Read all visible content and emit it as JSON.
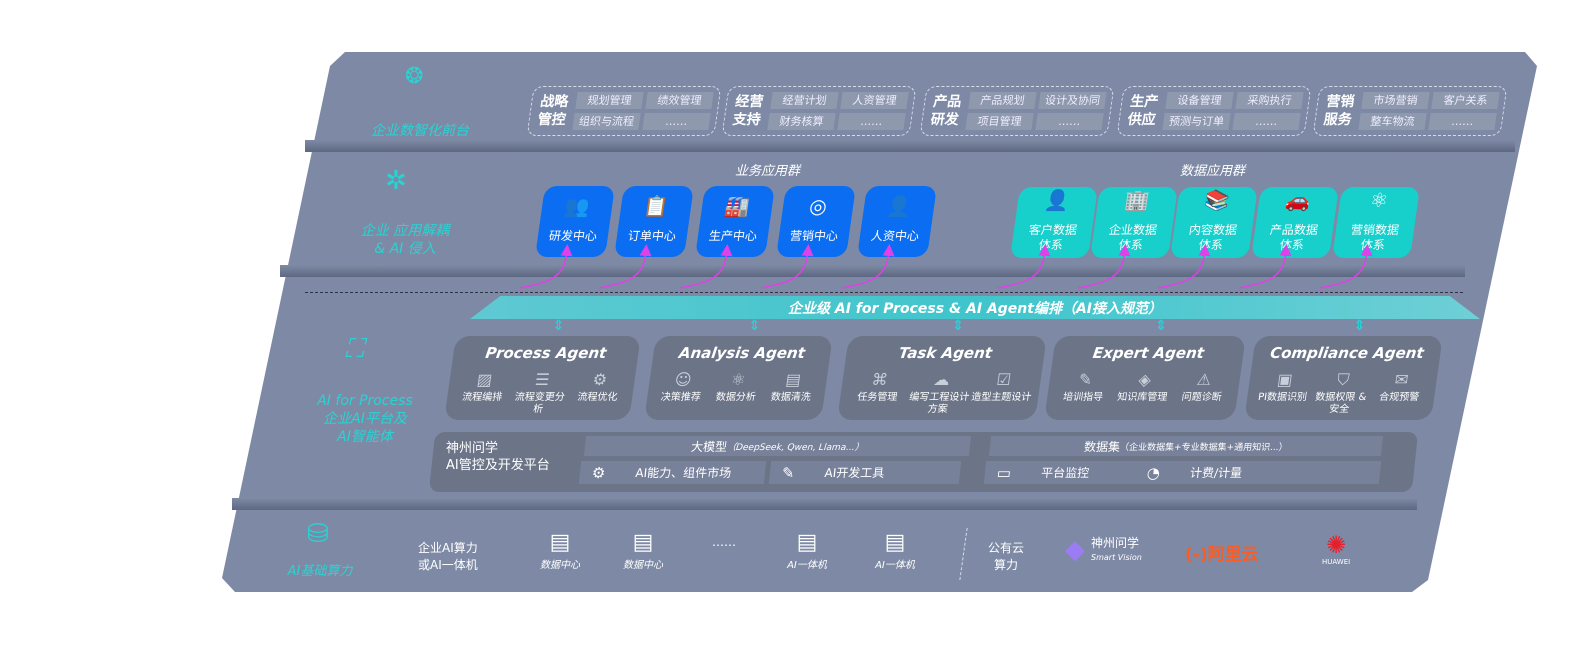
{
  "front": {
    "label": "企业数智化前台",
    "icon": "brain-icon",
    "groups": [
      {
        "title": "战略管控",
        "items": [
          "规划管理",
          "绩效管理",
          "组织与流程",
          "……"
        ]
      },
      {
        "title": "经营支持",
        "items": [
          "经营计划",
          "人资管理",
          "财务核算",
          "……"
        ]
      },
      {
        "title": "产品研发",
        "items": [
          "产品规划",
          "设计及协同",
          "项目管理",
          "……"
        ]
      },
      {
        "title": "生产供应",
        "items": [
          "设备管理",
          "采购执行",
          "预测与订单",
          "……"
        ]
      },
      {
        "title": "营销服务",
        "items": [
          "市场营销",
          "客户关系",
          "整车物流",
          "……"
        ]
      }
    ]
  },
  "apps": {
    "label1": "企业 应用解耦",
    "label2": "& AI 侵入",
    "icon": "molecule-icon",
    "business_title": "业务应用群",
    "business": [
      {
        "name": "研发中心",
        "icon": "team-icon",
        "glyph": "👥"
      },
      {
        "name": "订单中心",
        "icon": "clipboard-icon",
        "glyph": "📋"
      },
      {
        "name": "生产中心",
        "icon": "factory-icon",
        "glyph": "🏭"
      },
      {
        "name": "营销中心",
        "icon": "target-icon",
        "glyph": "◎"
      },
      {
        "name": "人资中心",
        "icon": "person-icon",
        "glyph": "👤"
      }
    ],
    "data_title": "数据应用群",
    "data": [
      {
        "l1": "客户数据",
        "l2": "体系",
        "icon": "user-icon",
        "glyph": "👤"
      },
      {
        "l1": "企业数据",
        "l2": "体系",
        "icon": "building-icon",
        "glyph": "🏢"
      },
      {
        "l1": "内容数据",
        "l2": "体系",
        "icon": "books-icon",
        "glyph": "📚"
      },
      {
        "l1": "产品数据",
        "l2": "体系",
        "icon": "car-icon",
        "glyph": "🚗"
      },
      {
        "l1": "营销数据",
        "l2": "体系",
        "icon": "atom-icon",
        "glyph": "⚛"
      }
    ]
  },
  "banner": "企业级 AI for Process & AI Agent编排（AI接入规范）",
  "ai": {
    "label1": "AI for Process",
    "label2": "企业AI平台及",
    "label3": "AI智能体",
    "icon": "face-scan-icon",
    "agents": [
      {
        "name": "Process Agent",
        "features": [
          [
            "流程编排",
            "chart-icon",
            "▨"
          ],
          [
            "流程变更分析",
            "list-icon",
            "☰"
          ],
          [
            "流程优化",
            "tools-icon",
            "⚙"
          ]
        ]
      },
      {
        "name": "Analysis Agent",
        "features": [
          [
            "决策推荐",
            "head-icon",
            "☺"
          ],
          [
            "数据分析",
            "atom-icon",
            "⚛"
          ],
          [
            "数据清洗",
            "doc-icon",
            "▤"
          ]
        ]
      },
      {
        "name": "Task Agent",
        "features": [
          [
            "任务管理",
            "network-icon",
            "⌘"
          ],
          [
            "编写工程设计方案",
            "cloud-icon",
            "☁"
          ],
          [
            "造型主题设计",
            "checklist-icon",
            "☑"
          ]
        ]
      },
      {
        "name": "Expert Agent",
        "features": [
          [
            "培训指导",
            "pen-icon",
            "✎"
          ],
          [
            "知识库管理",
            "layers-icon",
            "◈"
          ],
          [
            "问题诊断",
            "diagnosis-icon",
            "⚠"
          ]
        ]
      },
      {
        "name": "Compliance Agent",
        "features": [
          [
            "PI数据识别",
            "id-icon",
            "▣"
          ],
          [
            "数据权限 & 安全",
            "shield-icon",
            "⛉"
          ],
          [
            "合规预警",
            "alert-icon",
            "✉"
          ]
        ]
      }
    ],
    "platform": {
      "l1": "神州问学",
      "l2": "AI管控及开发平台",
      "model_title": "大模型",
      "model_note": "（DeepSeek, Qwen, Llama...）",
      "dataset_title": "数据集",
      "dataset_note": "（企业数据集+专业数据集+通用知识...）",
      "tools": [
        {
          "name": "AI能力、组件市场",
          "icon": "market-icon",
          "glyph": "⚙"
        },
        {
          "name": "AI开发工具",
          "icon": "dev-tool-icon",
          "glyph": "✎"
        },
        {
          "name": "平台监控",
          "icon": "monitor-icon",
          "glyph": "▭"
        },
        {
          "name": "计费/计量",
          "icon": "gauge-icon",
          "glyph": "◔"
        }
      ]
    }
  },
  "infra": {
    "label": "AI基础算力",
    "icon": "database-icon",
    "onprem": "企业AI算力",
    "onprem2": "或AI一体机",
    "servers": [
      "数据中心",
      "数据中心",
      "AI一体机",
      "AI一体机"
    ],
    "ellipsis": "……",
    "cloud1": "公有云",
    "cloud2": "算力",
    "logos": [
      {
        "name": "神州问学",
        "sub": "Smart Vision"
      },
      {
        "name": "阿里云",
        "mark": "(-)"
      },
      {
        "name": "HUAWEI"
      }
    ]
  },
  "colors": {
    "panel": "#7e8aa5",
    "blue": "#0b6ef2",
    "teal": "#17cfcb",
    "label": "#29d3d3",
    "arrow": "#e040e8"
  }
}
